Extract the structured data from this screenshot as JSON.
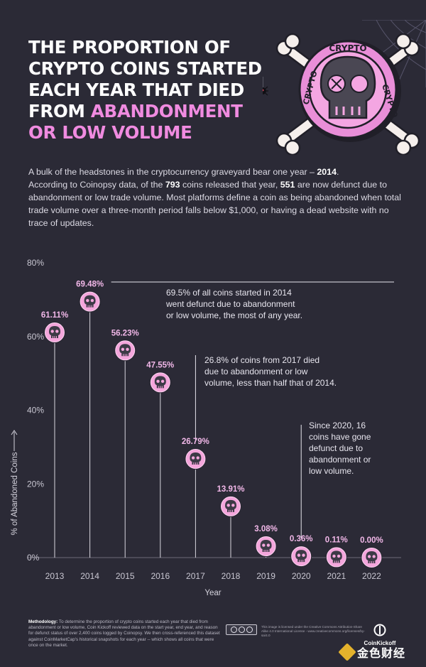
{
  "title": {
    "line1": "THE PROPORTION OF",
    "line2": "CRYPTO COINS STARTED",
    "line3": "EACH YEAR THAT DIED",
    "line4_plain": "FROM ",
    "line4_highlight": "ABANDONMENT",
    "line5_highlight": "OR LOW VOLUME"
  },
  "intro": {
    "p1": "A bulk of the headstones in the cryptocurrency graveyard bear one year – ",
    "p1_bold": "2014",
    "p1_end": ".",
    "p2": "According to Coinopsy data, of the ",
    "p2_bold1": "793",
    "p2_mid": " coins released that year, ",
    "p2_bold2": "551",
    "p2_end": " are now defunct due to abandonment or low trade volume. Most platforms define a coin as being abandoned when total trade volume over a three-month period falls below $1,000, or having a dead website with no trace of updates."
  },
  "skull_badge": {
    "top_text": "CRYPTO",
    "left_text": "CRYPTO",
    "right_text": "CRYPTO"
  },
  "chart_data": {
    "type": "lollipop",
    "categories": [
      "2013",
      "2014",
      "2015",
      "2016",
      "2017",
      "2018",
      "2019",
      "2020",
      "2021",
      "2022"
    ],
    "values": [
      61.11,
      69.48,
      56.23,
      47.55,
      26.79,
      13.91,
      3.08,
      0.36,
      0.11,
      0.0
    ],
    "value_labels": [
      "61.11%",
      "69.48%",
      "56.23%",
      "47.55%",
      "26.79%",
      "13.91%",
      "3.08%",
      "0.36%",
      "0.11%",
      "0.00%"
    ],
    "xlabel": "Year",
    "ylabel": "% of Abandoned Coins",
    "ylim": [
      0,
      80
    ],
    "yticks": [
      0,
      20,
      40,
      60,
      80
    ],
    "ytick_labels": [
      "0%",
      "20%",
      "40%",
      "60%",
      "80%"
    ],
    "grid": false,
    "marker_color": "#f4a6dc",
    "stem_color": "#d8d6de",
    "annotations": [
      {
        "anchor": "2014",
        "lines": [
          "69.5% of all coins started in 2014",
          "went defunct due to abandonment",
          "or low volume, the most of any year."
        ]
      },
      {
        "anchor": "2017",
        "lines": [
          "26.8% of coins from 2017 died",
          "due to abandonment or low",
          "volume, less than half that of 2014."
        ]
      },
      {
        "anchor": "2020",
        "lines": [
          "Since 2020, 16",
          "coins have gone",
          "defunct due to",
          "abandonment or",
          "low volume."
        ]
      }
    ]
  },
  "footer": {
    "methodology_label": "Methodology:",
    "methodology_text": " To determine the proportion of crypto coins started each year that died from abandonment or low volume, Coin Kickoff reviewed data on the start year, end year, and reason for defunct status of over 2,400 coins logged by Coinopsy. We then cross-referenced this dataset against CoinMarketCap's historical snapshots for each year -- which shows all coins that were once on the market.",
    "license_text": "This image is licensed under the Creative Commons Attribution-Share Alike 4.0 International License - www.creativecommons.org/licenses/by-sa/4.0",
    "brand": "CoinKickoff",
    "watermark": "金色财经"
  },
  "colors": {
    "background": "#2b2a36",
    "accent": "#f08be0",
    "marker": "#f4a6dc",
    "skull_face": "#4a4753"
  }
}
